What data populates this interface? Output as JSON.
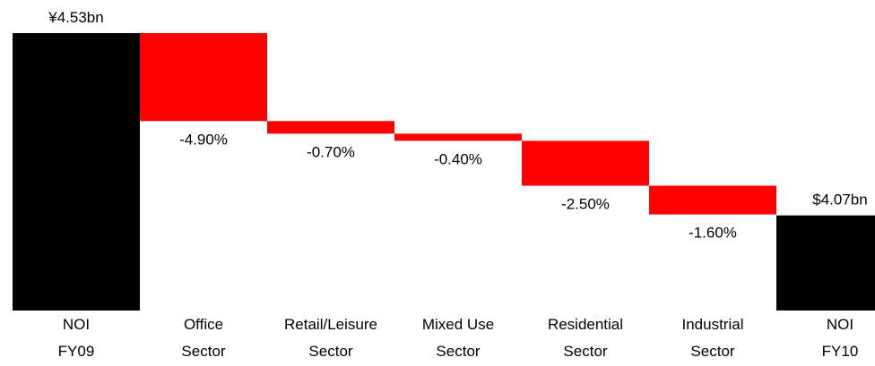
{
  "chart_data": {
    "type": "waterfall",
    "categories": [
      [
        "NOI",
        "FY09"
      ],
      [
        "Office",
        "Sector"
      ],
      [
        "Retail/Leisure",
        "Sector"
      ],
      [
        "Mixed Use",
        "Sector"
      ],
      [
        "Residential",
        "Sector"
      ],
      [
        "Industrial",
        "Sector"
      ],
      [
        "NOI",
        "FY10"
      ]
    ],
    "values": [
      4.53,
      -4.9,
      -0.7,
      -0.4,
      -2.5,
      -1.6,
      4.07
    ],
    "value_labels": [
      "¥4.53bn",
      "-4.90%",
      "-0.70%",
      "-0.40%",
      "-2.50%",
      "-1.60%",
      "$4.07bn"
    ],
    "colors": {
      "total": "#000000",
      "change": "#ff0000"
    },
    "ylim": [
      3.83,
      4.53
    ]
  }
}
